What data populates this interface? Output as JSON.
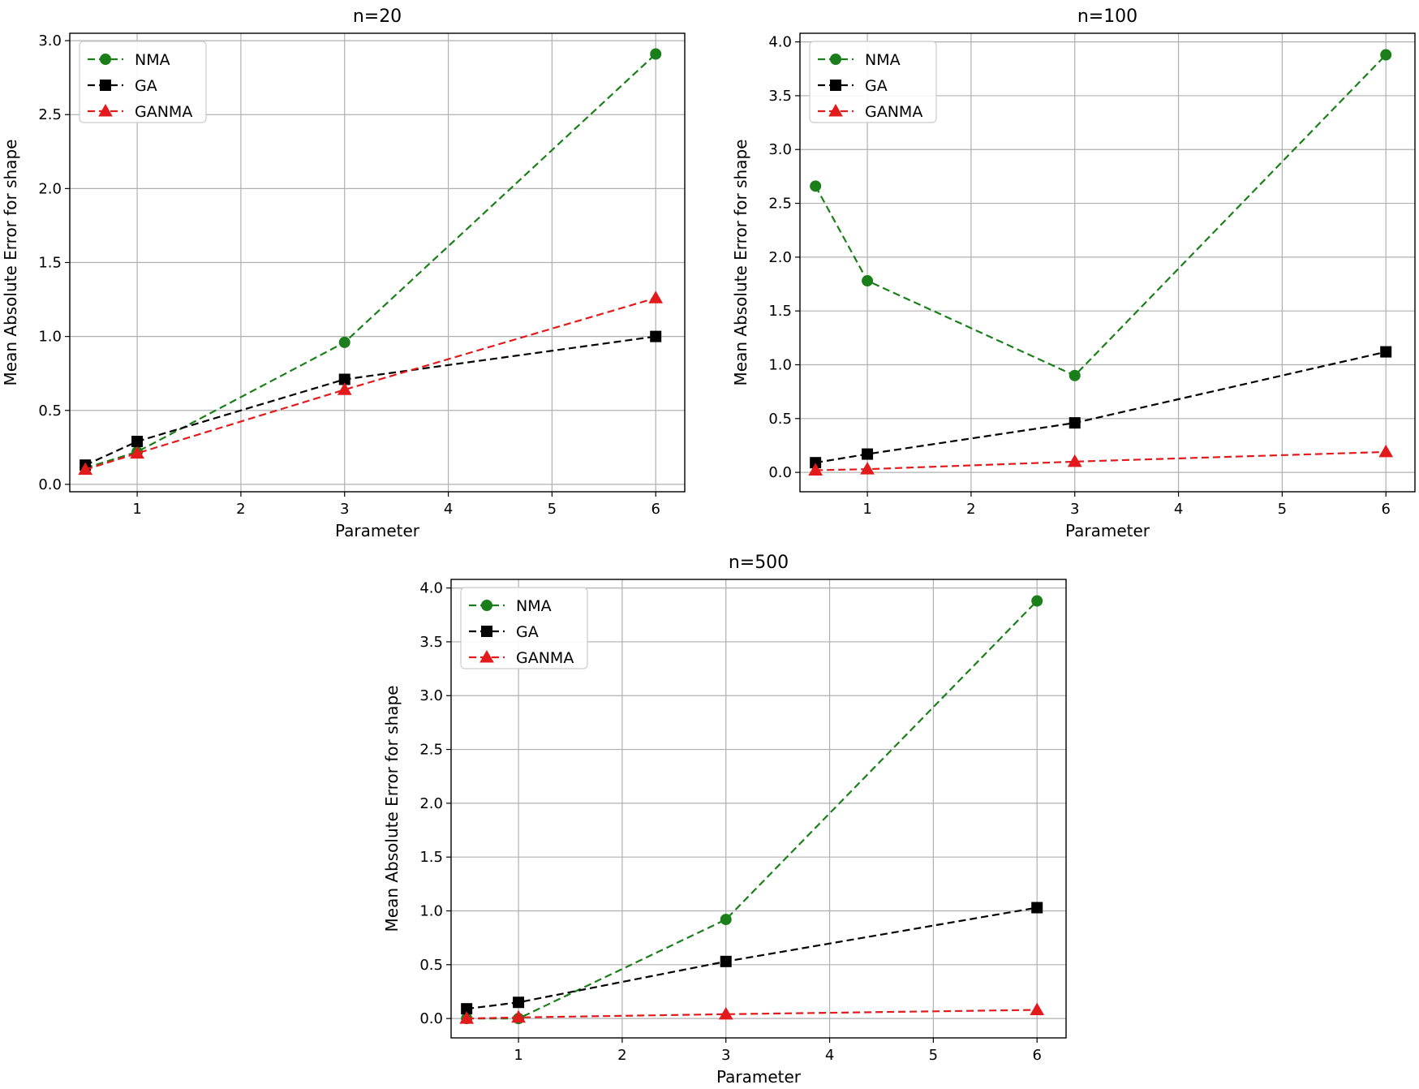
{
  "chart_data": [
    {
      "type": "line",
      "title": "n=20",
      "xlabel": "Parameter",
      "ylabel": "Mean Absolute Error for shape",
      "xlim": [
        0.35,
        6.28
      ],
      "ylim": [
        -0.05,
        3.05
      ],
      "xticks": [
        1,
        2,
        3,
        4,
        5,
        6
      ],
      "yticks": [
        0.0,
        0.5,
        1.0,
        1.5,
        2.0,
        2.5,
        3.0
      ],
      "ytick_labels": [
        "0.0",
        "0.5",
        "1.0",
        "1.5",
        "2.0",
        "2.5",
        "3.0"
      ],
      "grid": true,
      "legend_position": "top-left",
      "x": [
        0.5,
        1,
        3,
        6
      ],
      "series": [
        {
          "name": "NMA",
          "color": "#1a7f1a",
          "marker": "circle",
          "values": [
            0.11,
            0.22,
            0.96,
            2.91
          ]
        },
        {
          "name": "GA",
          "color": "#000000",
          "marker": "square",
          "values": [
            0.13,
            0.29,
            0.71,
            1.0
          ]
        },
        {
          "name": "GANMA",
          "color": "#e31a1c",
          "marker": "triangle",
          "values": [
            0.1,
            0.21,
            0.64,
            1.26
          ]
        }
      ]
    },
    {
      "type": "line",
      "title": "n=100",
      "xlabel": "Parameter",
      "ylabel": "Mean Absolute Error for shape",
      "xlim": [
        0.35,
        6.28
      ],
      "ylim": [
        -0.18,
        4.08
      ],
      "xticks": [
        1,
        2,
        3,
        4,
        5,
        6
      ],
      "yticks": [
        0.0,
        0.5,
        1.0,
        1.5,
        2.0,
        2.5,
        3.0,
        3.5,
        4.0
      ],
      "ytick_labels": [
        "0.0",
        "0.5",
        "1.0",
        "1.5",
        "2.0",
        "2.5",
        "3.0",
        "3.5",
        "4.0"
      ],
      "grid": true,
      "legend_position": "top-left",
      "x": [
        0.5,
        1,
        3,
        6
      ],
      "series": [
        {
          "name": "NMA",
          "color": "#1a7f1a",
          "marker": "circle",
          "values": [
            2.66,
            1.78,
            0.9,
            3.88
          ]
        },
        {
          "name": "GA",
          "color": "#000000",
          "marker": "square",
          "values": [
            0.09,
            0.17,
            0.46,
            1.12
          ]
        },
        {
          "name": "GANMA",
          "color": "#e31a1c",
          "marker": "triangle",
          "values": [
            0.02,
            0.03,
            0.1,
            0.19
          ]
        }
      ]
    },
    {
      "type": "line",
      "title": "n=500",
      "xlabel": "Parameter",
      "ylabel": "Mean Absolute Error for shape",
      "xlim": [
        0.35,
        6.28
      ],
      "ylim": [
        -0.18,
        4.08
      ],
      "xticks": [
        1,
        2,
        3,
        4,
        5,
        6
      ],
      "yticks": [
        0.0,
        0.5,
        1.0,
        1.5,
        2.0,
        2.5,
        3.0,
        3.5,
        4.0
      ],
      "ytick_labels": [
        "0.0",
        "0.5",
        "1.0",
        "1.5",
        "2.0",
        "2.5",
        "3.0",
        "3.5",
        "4.0"
      ],
      "grid": true,
      "legend_position": "top-left",
      "x": [
        0.5,
        1,
        3,
        6
      ],
      "series": [
        {
          "name": "NMA",
          "color": "#1a7f1a",
          "marker": "circle",
          "values": [
            0.0,
            0.0,
            0.92,
            3.88
          ]
        },
        {
          "name": "GA",
          "color": "#000000",
          "marker": "square",
          "values": [
            0.09,
            0.15,
            0.53,
            1.03
          ]
        },
        {
          "name": "GANMA",
          "color": "#e31a1c",
          "marker": "triangle",
          "values": [
            0.0,
            0.01,
            0.04,
            0.08
          ]
        }
      ]
    }
  ]
}
